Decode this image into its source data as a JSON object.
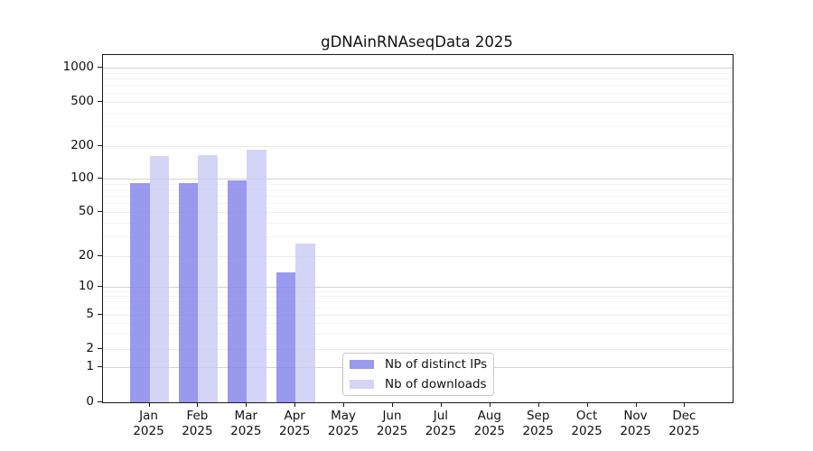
{
  "figure": {
    "title": "gDNAinRNAseqData 2025"
  },
  "chart_data": {
    "type": "bar",
    "title": "gDNAinRNAseqData 2025",
    "categories": [
      "Jan 2025",
      "Feb 2025",
      "Mar 2025",
      "Apr 2025",
      "May 2025",
      "Jun 2025",
      "Jul 2025",
      "Aug 2025",
      "Sep 2025",
      "Oct 2025",
      "Nov 2025",
      "Dec 2025"
    ],
    "series": [
      {
        "name": "Nb of distinct IPs",
        "color": "#9999ed",
        "values": [
          91,
          91,
          96,
          14,
          null,
          null,
          null,
          null,
          null,
          null,
          null,
          null
        ]
      },
      {
        "name": "Nb of downloads",
        "color": "#d4d4f7",
        "values": [
          162,
          165,
          187,
          26,
          null,
          null,
          null,
          null,
          null,
          null,
          null,
          null
        ]
      }
    ],
    "yscale": "symlog",
    "y_ticks": [
      1000,
      500,
      200,
      100,
      50,
      20,
      10,
      5,
      2,
      1,
      0
    ],
    "ylim": [
      0,
      1500
    ],
    "xlabel": "",
    "ylabel": "",
    "grid": "horizontal, major and minor",
    "legend_position": "inside axes, bottom center"
  }
}
